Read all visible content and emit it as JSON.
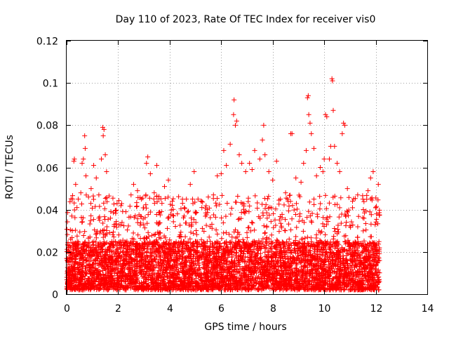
{
  "chart_data": {
    "type": "scatter",
    "title": "Day 110 of 2023, Rate Of TEC Index for receiver vis0",
    "xlabel": "GPS time / hours",
    "ylabel": "ROTI / TECUs",
    "xlim": [
      0,
      14
    ],
    "ylim": [
      0,
      0.12
    ],
    "xticks": [
      0,
      2,
      4,
      6,
      8,
      10,
      12,
      14
    ],
    "xtick_labels": [
      "0",
      "2",
      "4",
      "6",
      "8",
      "10",
      "12",
      "14"
    ],
    "yticks": [
      0,
      0.02,
      0.04,
      0.06,
      0.08,
      0.1,
      0.12
    ],
    "ytick_labels": [
      "0",
      "0.02",
      "0.04",
      "0.06",
      "0.08",
      "0.1",
      "0.12"
    ],
    "grid": true,
    "marker": "+",
    "color": "#ff0000",
    "data_range_x": [
      0,
      12.15
    ],
    "dense_band": {
      "y_min": 0.002,
      "y_max": 0.025,
      "note": "dense cloud of points across the whole time range"
    },
    "series": [
      {
        "name": "ROTI",
        "points": [
          [
            0.05,
            0.005
          ],
          [
            0.1,
            0.012
          ],
          [
            0.15,
            0.026
          ],
          [
            0.2,
            0.037
          ],
          [
            0.28,
            0.063
          ],
          [
            0.3,
            0.064
          ],
          [
            0.35,
            0.052
          ],
          [
            0.4,
            0.041
          ],
          [
            0.45,
            0.045
          ],
          [
            0.55,
            0.048
          ],
          [
            0.6,
            0.062
          ],
          [
            0.65,
            0.064
          ],
          [
            0.7,
            0.075
          ],
          [
            0.72,
            0.069
          ],
          [
            0.75,
            0.056
          ],
          [
            0.85,
            0.046
          ],
          [
            0.95,
            0.05
          ],
          [
            1.05,
            0.061
          ],
          [
            1.15,
            0.055
          ],
          [
            1.25,
            0.047
          ],
          [
            1.35,
            0.064
          ],
          [
            1.4,
            0.079
          ],
          [
            1.42,
            0.075
          ],
          [
            1.45,
            0.078
          ],
          [
            1.5,
            0.066
          ],
          [
            1.55,
            0.058
          ],
          [
            1.7,
            0.036
          ],
          [
            1.85,
            0.033
          ],
          [
            2.15,
            0.034
          ],
          [
            2.3,
            0.039
          ],
          [
            2.5,
            0.047
          ],
          [
            2.6,
            0.052
          ],
          [
            2.75,
            0.049
          ],
          [
            2.9,
            0.045
          ],
          [
            3.1,
            0.062
          ],
          [
            3.15,
            0.065
          ],
          [
            3.25,
            0.057
          ],
          [
            3.4,
            0.048
          ],
          [
            3.5,
            0.061
          ],
          [
            3.7,
            0.043
          ],
          [
            3.8,
            0.051
          ],
          [
            3.95,
            0.054
          ],
          [
            4.1,
            0.044
          ],
          [
            4.3,
            0.038
          ],
          [
            4.5,
            0.043
          ],
          [
            4.65,
            0.045
          ],
          [
            4.8,
            0.052
          ],
          [
            4.95,
            0.058
          ],
          [
            5.1,
            0.045
          ],
          [
            5.25,
            0.041
          ],
          [
            5.5,
            0.046
          ],
          [
            5.7,
            0.047
          ],
          [
            5.85,
            0.056
          ],
          [
            6.0,
            0.057
          ],
          [
            6.1,
            0.068
          ],
          [
            6.2,
            0.061
          ],
          [
            6.35,
            0.071
          ],
          [
            6.48,
            0.085
          ],
          [
            6.5,
            0.092
          ],
          [
            6.55,
            0.08
          ],
          [
            6.6,
            0.082
          ],
          [
            6.7,
            0.066
          ],
          [
            6.8,
            0.062
          ],
          [
            6.95,
            0.058
          ],
          [
            7.1,
            0.062
          ],
          [
            7.2,
            0.059
          ],
          [
            7.3,
            0.068
          ],
          [
            7.5,
            0.064
          ],
          [
            7.6,
            0.073
          ],
          [
            7.65,
            0.08
          ],
          [
            7.7,
            0.066
          ],
          [
            7.85,
            0.058
          ],
          [
            8.0,
            0.054
          ],
          [
            8.15,
            0.063
          ],
          [
            8.3,
            0.045
          ],
          [
            8.5,
            0.048
          ],
          [
            8.7,
            0.076
          ],
          [
            8.75,
            0.076
          ],
          [
            8.9,
            0.055
          ],
          [
            9.1,
            0.053
          ],
          [
            9.2,
            0.062
          ],
          [
            9.3,
            0.068
          ],
          [
            9.35,
            0.093
          ],
          [
            9.38,
            0.094
          ],
          [
            9.4,
            0.085
          ],
          [
            9.45,
            0.081
          ],
          [
            9.5,
            0.076
          ],
          [
            9.6,
            0.069
          ],
          [
            9.7,
            0.056
          ],
          [
            9.85,
            0.06
          ],
          [
            9.95,
            0.058
          ],
          [
            10.0,
            0.064
          ],
          [
            10.05,
            0.085
          ],
          [
            10.1,
            0.084
          ],
          [
            10.2,
            0.064
          ],
          [
            10.25,
            0.07
          ],
          [
            10.3,
            0.102
          ],
          [
            10.32,
            0.101
          ],
          [
            10.35,
            0.087
          ],
          [
            10.4,
            0.07
          ],
          [
            10.5,
            0.062
          ],
          [
            10.6,
            0.058
          ],
          [
            10.7,
            0.076
          ],
          [
            10.75,
            0.081
          ],
          [
            10.8,
            0.08
          ],
          [
            10.9,
            0.05
          ],
          [
            11.1,
            0.044
          ],
          [
            11.3,
            0.047
          ],
          [
            11.5,
            0.045
          ],
          [
            11.7,
            0.049
          ],
          [
            11.8,
            0.055
          ],
          [
            11.9,
            0.058
          ],
          [
            12.0,
            0.041
          ],
          [
            12.1,
            0.052
          ]
        ]
      }
    ]
  }
}
